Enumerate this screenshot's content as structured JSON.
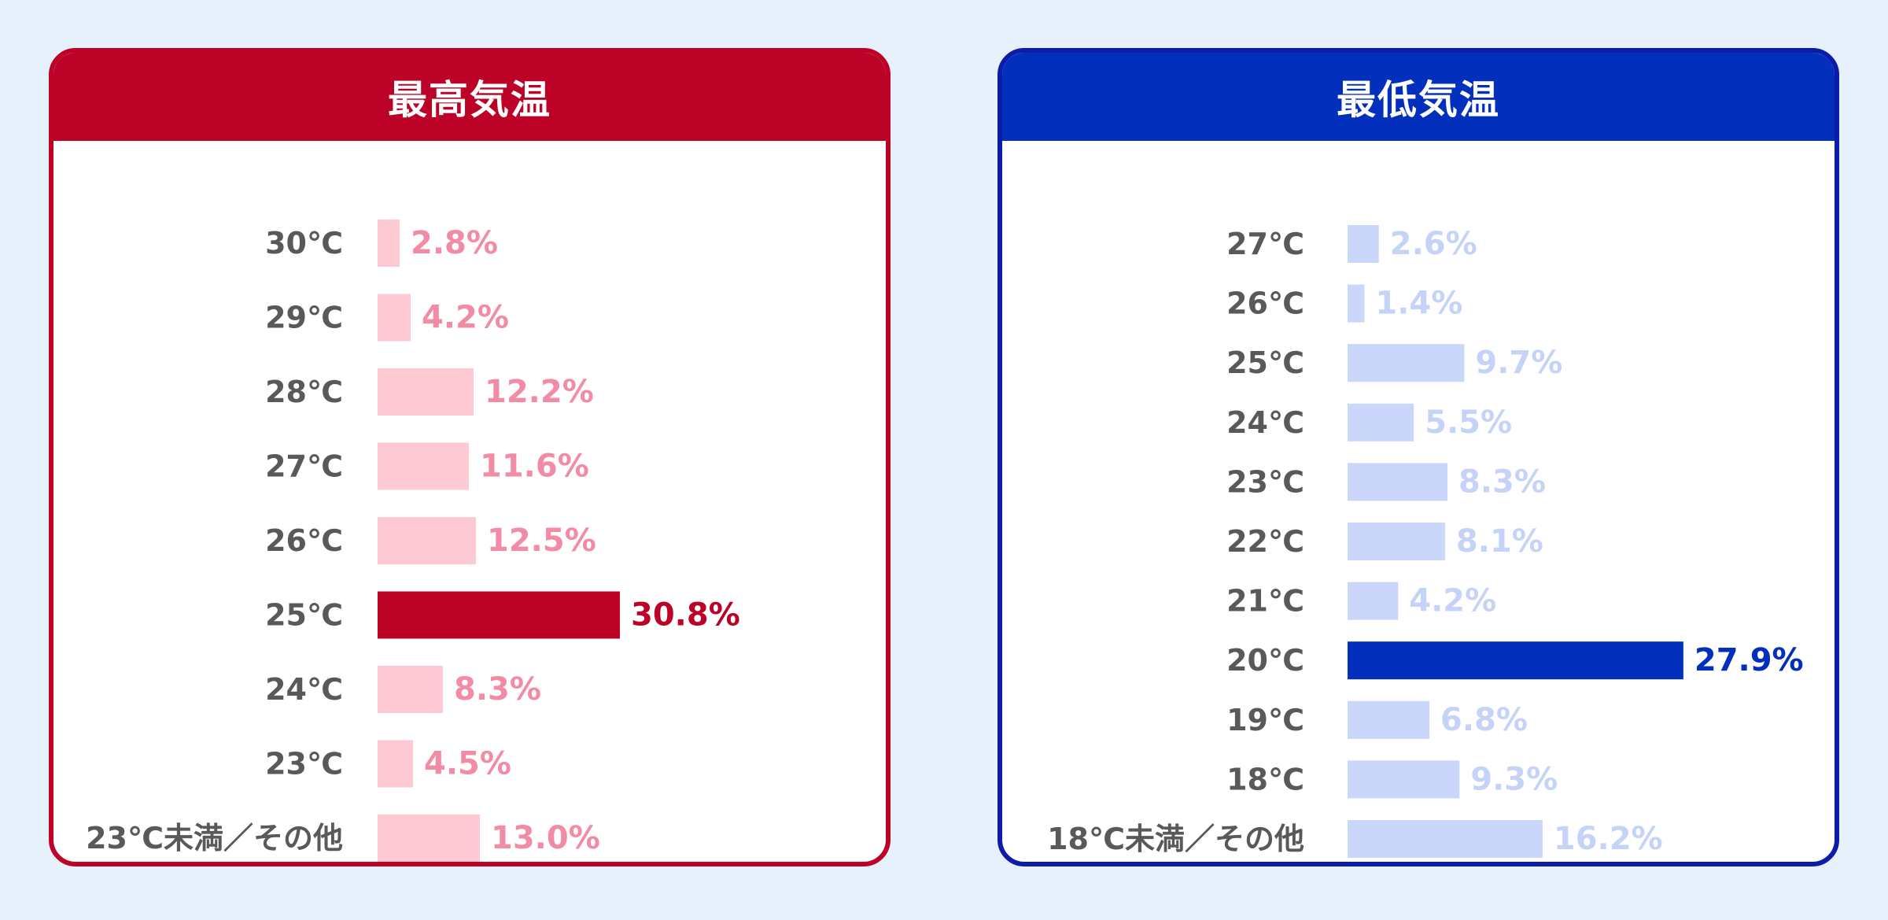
{
  "chart_data": [
    {
      "type": "bar",
      "orientation": "horizontal",
      "title": "最高気温",
      "categories": [
        "30℃",
        "29℃",
        "28℃",
        "27℃",
        "26℃",
        "25℃",
        "24℃",
        "23℃",
        "23℃未満／その他"
      ],
      "values": [
        2.8,
        4.2,
        12.2,
        11.6,
        12.5,
        30.8,
        8.3,
        4.5,
        13.0
      ],
      "value_labels": [
        "2.8%",
        "4.2%",
        "12.2%",
        "11.6%",
        "12.5%",
        "30.8%",
        "8.3%",
        "4.5%",
        "13.0%"
      ],
      "highlight_index": 5,
      "colors": {
        "header": "#bc0226",
        "border": "#bc0226",
        "bar": "#fdc9d3",
        "bar_highlight": "#bc0226",
        "label": "#f28ca4",
        "label_highlight": "#bc0226"
      }
    },
    {
      "type": "bar",
      "orientation": "horizontal",
      "title": "最低気温",
      "categories": [
        "27℃",
        "26℃",
        "25℃",
        "24℃",
        "23℃",
        "22℃",
        "21℃",
        "20℃",
        "19℃",
        "18℃",
        "18℃未満／その他"
      ],
      "values": [
        2.6,
        1.4,
        9.7,
        5.5,
        8.3,
        8.1,
        4.2,
        27.9,
        6.8,
        9.3,
        16.2
      ],
      "value_labels": [
        "2.6%",
        "1.4%",
        "9.7%",
        "5.5%",
        "8.3%",
        "8.1%",
        "4.2%",
        "27.9%",
        "6.8%",
        "9.3%",
        "16.2%"
      ],
      "highlight_index": 7,
      "colors": {
        "header": "#022fbc",
        "border": "#0c1ba8",
        "bar": "#cad6fa",
        "bar_highlight": "#022fbc",
        "label": "#c5d3f8",
        "label_highlight": "#022fbc"
      }
    }
  ]
}
